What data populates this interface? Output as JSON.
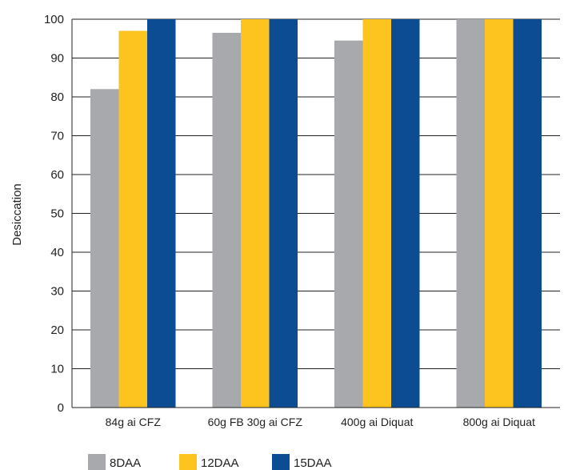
{
  "chart_data": {
    "type": "bar",
    "title": "",
    "xlabel": "",
    "ylabel": "Desiccation",
    "ylim": [
      0,
      100
    ],
    "yticks": [
      0,
      10,
      20,
      30,
      40,
      50,
      60,
      70,
      80,
      90,
      100
    ],
    "grid": "horizontal",
    "legend_position": "bottom-left",
    "categories": [
      "84g ai CFZ",
      "60g FB 30g ai CFZ",
      "400g ai Diquat",
      "800g ai Diquat"
    ],
    "series": [
      {
        "name": "8DAA",
        "color": "#a7a9ac",
        "values": [
          82,
          96.5,
          94.5,
          100
        ]
      },
      {
        "name": "12DAA",
        "color": "#fdc420",
        "values": [
          97,
          100,
          100,
          100
        ]
      },
      {
        "name": "15DAA",
        "color": "#0b4c93",
        "values": [
          100,
          100,
          100,
          100
        ]
      }
    ]
  }
}
